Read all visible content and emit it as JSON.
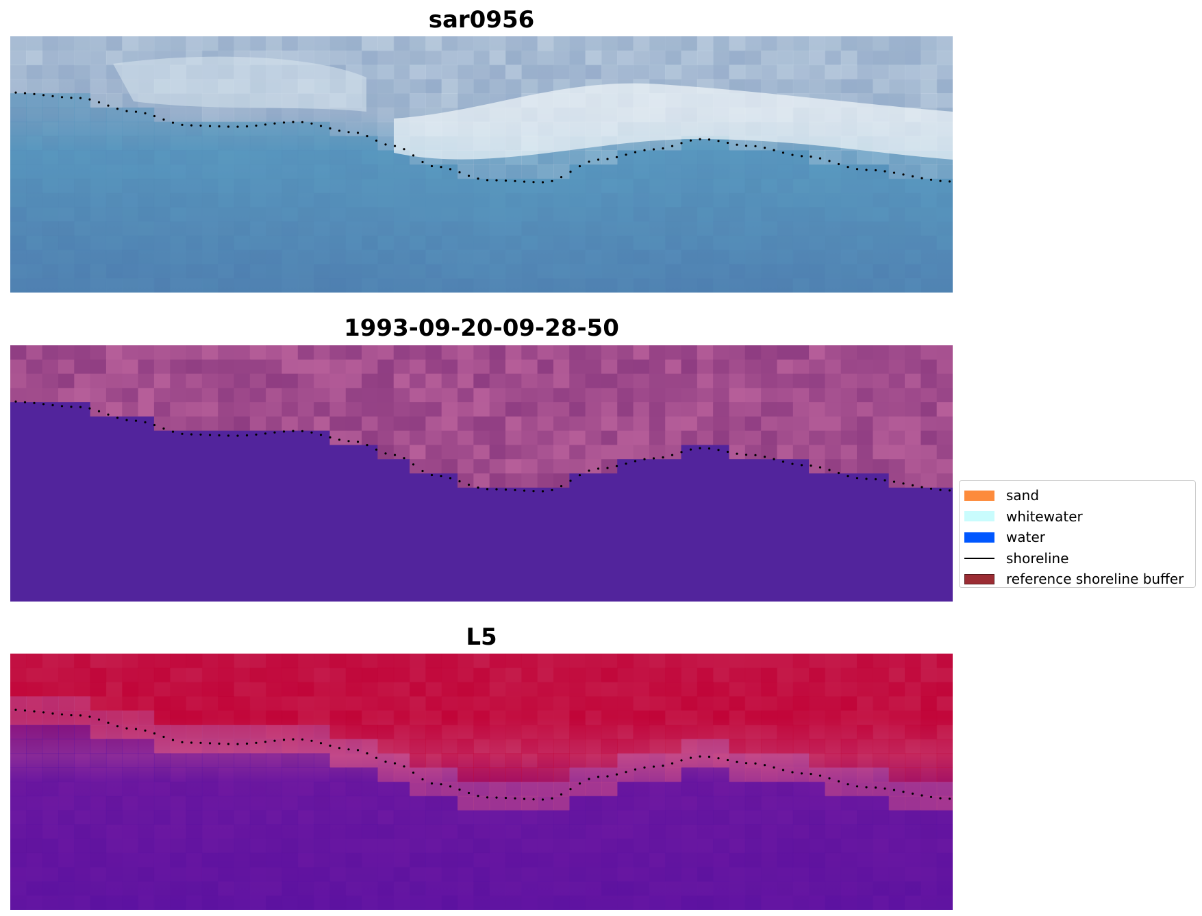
{
  "panels": [
    {
      "title": "sar0956",
      "kind": "rgb-image",
      "palette": {
        "water_deep": "#4f7fb0",
        "water_mid": "#5a9ac0",
        "land": "#9ab0cc",
        "whitewater": "#f1f6fa"
      }
    },
    {
      "title": "1993-09-20-09-28-50",
      "kind": "classified-image",
      "palette": {
        "water_class": "#52249c",
        "land_class_dark": "#8f3d82",
        "land_class_light": "#b65e99"
      }
    },
    {
      "title": "L5",
      "kind": "index-image",
      "palette": {
        "high": "#c00034",
        "mid": "#c54a88",
        "low": "#5a12a0"
      }
    }
  ],
  "legend": {
    "items": [
      {
        "label": "sand",
        "kind": "patch",
        "color": "#fd8b3c"
      },
      {
        "label": "whitewater",
        "kind": "patch",
        "color": "#c9fcfd"
      },
      {
        "label": "water",
        "kind": "patch",
        "color": "#0057ff"
      },
      {
        "label": "shoreline",
        "kind": "line",
        "color": "#000000"
      },
      {
        "label": "reference shoreline buffer",
        "kind": "patch",
        "color": "#9b2c33"
      }
    ]
  }
}
